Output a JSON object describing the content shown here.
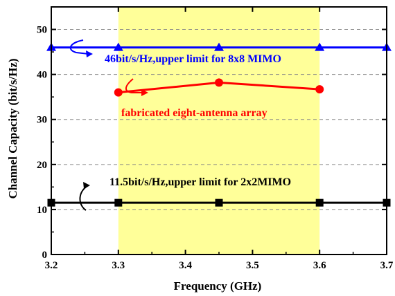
{
  "chart_data": {
    "type": "line",
    "xlabel": "Frequency (GHz)",
    "ylabel": "Channel Capacity (bit/s/Hz)",
    "xlim": [
      3.2,
      3.7
    ],
    "ylim": [
      0,
      55
    ],
    "xticks": [
      "3.2",
      "3.3",
      "3.4",
      "3.5",
      "3.6",
      "3.7"
    ],
    "yticks": [
      "0",
      "10",
      "20",
      "30",
      "40",
      "50"
    ],
    "grid": "horizontal dashed",
    "highlight_band": {
      "x": [
        3.3,
        3.6
      ],
      "color": "#ffff99"
    },
    "series": [
      {
        "color": "#0000ff",
        "marker": "triangle",
        "x": [
          3.2,
          3.3,
          3.45,
          3.6,
          3.7
        ],
        "y": [
          46,
          46,
          46,
          46,
          46
        ]
      },
      {
        "color": "#ff0000",
        "marker": "circle",
        "x": [
          3.3,
          3.45,
          3.6
        ],
        "y": [
          36,
          38.2,
          36.7
        ]
      },
      {
        "color": "#000000",
        "marker": "square",
        "x": [
          3.2,
          3.3,
          3.45,
          3.6,
          3.7
        ],
        "y": [
          11.5,
          11.5,
          11.5,
          11.5,
          11.5
        ]
      }
    ],
    "annotations": [
      {
        "text": "46bit/s/Hz,upper limit for 8x8 MIMO",
        "color": "#0000ff"
      },
      {
        "text": "fabricated eight-antenna array",
        "color": "#ff0000"
      },
      {
        "text": "11.5bit/s/Hz,upper limit for 2x2MIMO",
        "color": "#000000"
      }
    ]
  }
}
